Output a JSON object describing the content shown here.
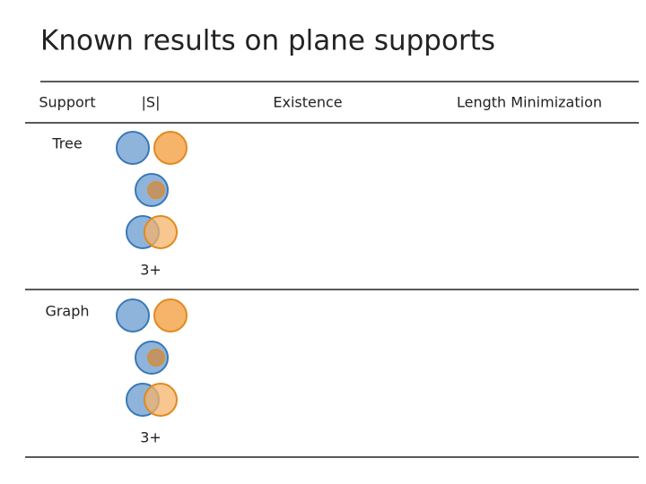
{
  "title": "Known results on plane supports",
  "table": {
    "header": [
      "Support",
      "|S|",
      "Existence",
      "Length Minimization"
    ],
    "rows": [
      [
        "Tree",
        "3+"
      ],
      [
        "Graph",
        "3+"
      ]
    ]
  }
}
